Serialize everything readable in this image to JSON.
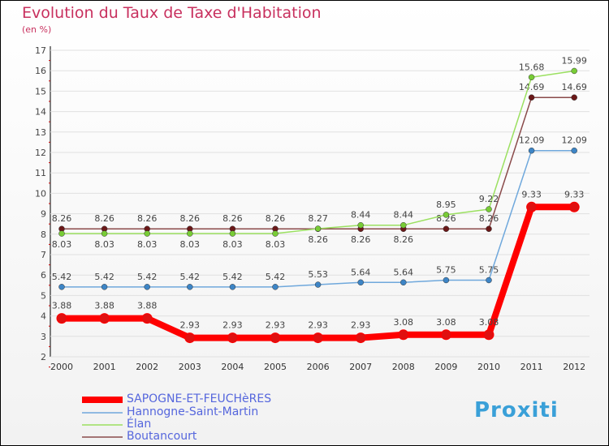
{
  "title": "Evolution du Taux de Taxe d'Habitation",
  "subtitle": "(en %)",
  "logo": "Proxiti",
  "chart_data": {
    "type": "line",
    "x": [
      "2000",
      "2001",
      "2002",
      "2003",
      "2004",
      "2005",
      "2006",
      "2007",
      "2008",
      "2009",
      "2010",
      "2011",
      "2012"
    ],
    "ylim": [
      2,
      17
    ],
    "yticks": [
      2,
      3,
      4,
      5,
      6,
      7,
      8,
      9,
      10,
      11,
      12,
      13,
      14,
      15,
      16,
      17
    ],
    "series": [
      {
        "name": "SAPOGNE-ET-FEUCHèRES",
        "color": "#ff0000",
        "dot": "#e01010",
        "width": 8,
        "values": [
          3.88,
          3.88,
          3.88,
          2.93,
          2.93,
          2.93,
          2.93,
          2.93,
          3.08,
          3.08,
          3.08,
          9.33,
          9.33
        ]
      },
      {
        "name": "Hannogne-Saint-Martin",
        "color": "#6fa8dc",
        "dot": "#3d85c6",
        "width": 1.5,
        "values": [
          5.42,
          5.42,
          5.42,
          5.42,
          5.42,
          5.42,
          5.53,
          5.64,
          5.64,
          5.75,
          5.75,
          12.09,
          12.09
        ]
      },
      {
        "name": "Élan",
        "color": "#9be060",
        "dot": "#78cc36",
        "width": 1.5,
        "values": [
          8.03,
          8.03,
          8.03,
          8.03,
          8.03,
          8.03,
          8.27,
          8.44,
          8.44,
          8.95,
          9.22,
          15.68,
          15.99
        ]
      },
      {
        "name": "Boutancourt",
        "color": "#8a4a4a",
        "dot": "#6a1818",
        "width": 1.5,
        "values": [
          8.26,
          8.26,
          8.26,
          8.26,
          8.26,
          8.26,
          8.26,
          8.26,
          8.26,
          8.26,
          8.26,
          14.69,
          14.69
        ]
      }
    ]
  }
}
